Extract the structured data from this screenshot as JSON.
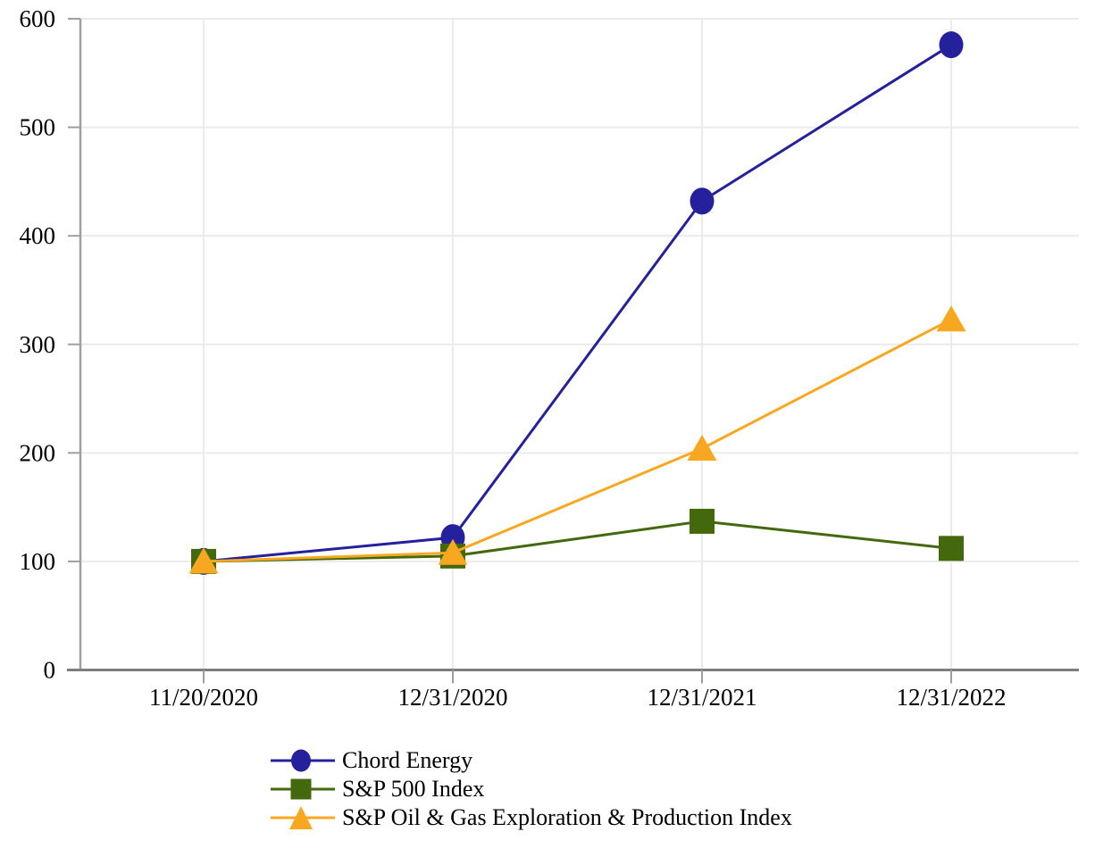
{
  "chart_data": {
    "type": "line",
    "title": "",
    "xlabel": "",
    "ylabel": "",
    "categories": [
      "11/20/2020",
      "12/31/2020",
      "12/31/2021",
      "12/31/2022"
    ],
    "series": [
      {
        "name": "Chord Energy",
        "marker": "circle",
        "color": "#25209B",
        "values": [
          100,
          122,
          432,
          576
        ]
      },
      {
        "name": "S&P 500 Index",
        "marker": "square",
        "color": "#44690D",
        "values": [
          100,
          105,
          137,
          112
        ]
      },
      {
        "name": "S&P Oil & Gas Exploration & Production Index",
        "marker": "triangle",
        "color": "#F8A820",
        "values": [
          100,
          108,
          204,
          323
        ]
      }
    ],
    "ylim": [
      0,
      600
    ],
    "yticks": [
      0,
      100,
      200,
      300,
      400,
      500,
      600
    ],
    "grid": true,
    "legend_position": "bottom-left",
    "colors": {
      "gridline": "#ebebeb",
      "y_spine": "#9f9f9f",
      "x_axis": "#7d7d7d",
      "tick": "#9f9f9f",
      "text": "#000000"
    }
  }
}
